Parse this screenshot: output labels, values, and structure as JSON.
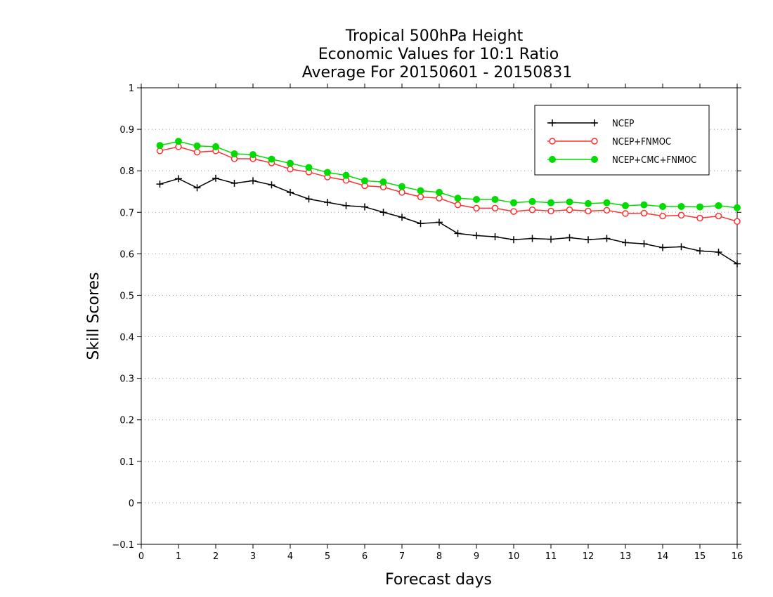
{
  "chart_data": {
    "type": "line",
    "title": [
      "Tropical 500hPa Height",
      "Economic Values for 10:1 Ratio",
      "Average For 20150601 - 20150831"
    ],
    "xlabel": "Forecast days",
    "ylabel": "Skill Scores",
    "xlim": [
      0,
      16
    ],
    "ylim": [
      -0.1,
      1
    ],
    "x_ticks": [
      0,
      1,
      2,
      3,
      4,
      5,
      6,
      7,
      8,
      9,
      10,
      11,
      12,
      13,
      14,
      15,
      16
    ],
    "y_ticks": [
      -0.1,
      0,
      0.1,
      0.2,
      0.3,
      0.4,
      0.5,
      0.6,
      0.7,
      0.8,
      0.9,
      1
    ],
    "y_tick_labels": [
      "−0.1",
      "0",
      "0.1",
      "0.2",
      "0.3",
      "0.4",
      "0.5",
      "0.6",
      "0.7",
      "0.8",
      "0.9",
      "1"
    ],
    "grid": "horizontal dotted",
    "legend_position": "top-right",
    "x": [
      0.5,
      1,
      1.5,
      2,
      2.5,
      3,
      3.5,
      4,
      4.5,
      5,
      5.5,
      6,
      6.5,
      7,
      7.5,
      8,
      8.5,
      9,
      9.5,
      10,
      10.5,
      11,
      11.5,
      12,
      12.5,
      13,
      13.5,
      14,
      14.5,
      15,
      15.5,
      16
    ],
    "series": [
      {
        "name": "NCEP",
        "color": "#000000",
        "marker": "plus",
        "values": [
          0.768,
          0.781,
          0.759,
          0.782,
          0.77,
          0.776,
          0.766,
          0.748,
          0.732,
          0.724,
          0.716,
          0.713,
          0.7,
          0.688,
          0.673,
          0.676,
          0.649,
          0.644,
          0.641,
          0.634,
          0.637,
          0.635,
          0.639,
          0.634,
          0.637,
          0.627,
          0.624,
          0.615,
          0.617,
          0.607,
          0.604,
          0.576
        ]
      },
      {
        "name": "NCEP+FNMOC",
        "color": "#ff3030",
        "marker": "open-circle",
        "values": [
          0.848,
          0.858,
          0.845,
          0.848,
          0.829,
          0.829,
          0.819,
          0.804,
          0.797,
          0.785,
          0.777,
          0.764,
          0.761,
          0.748,
          0.737,
          0.734,
          0.718,
          0.71,
          0.71,
          0.702,
          0.706,
          0.703,
          0.706,
          0.703,
          0.705,
          0.697,
          0.698,
          0.691,
          0.693,
          0.686,
          0.691,
          0.678
        ]
      },
      {
        "name": "NCEP+CMC+FNMOC",
        "color": "#00dc00",
        "marker": "filled-circle",
        "values": [
          0.861,
          0.871,
          0.86,
          0.858,
          0.841,
          0.839,
          0.828,
          0.818,
          0.808,
          0.796,
          0.789,
          0.776,
          0.773,
          0.762,
          0.752,
          0.748,
          0.734,
          0.731,
          0.731,
          0.723,
          0.726,
          0.723,
          0.725,
          0.721,
          0.723,
          0.716,
          0.718,
          0.714,
          0.714,
          0.713,
          0.716,
          0.711
        ]
      }
    ]
  }
}
